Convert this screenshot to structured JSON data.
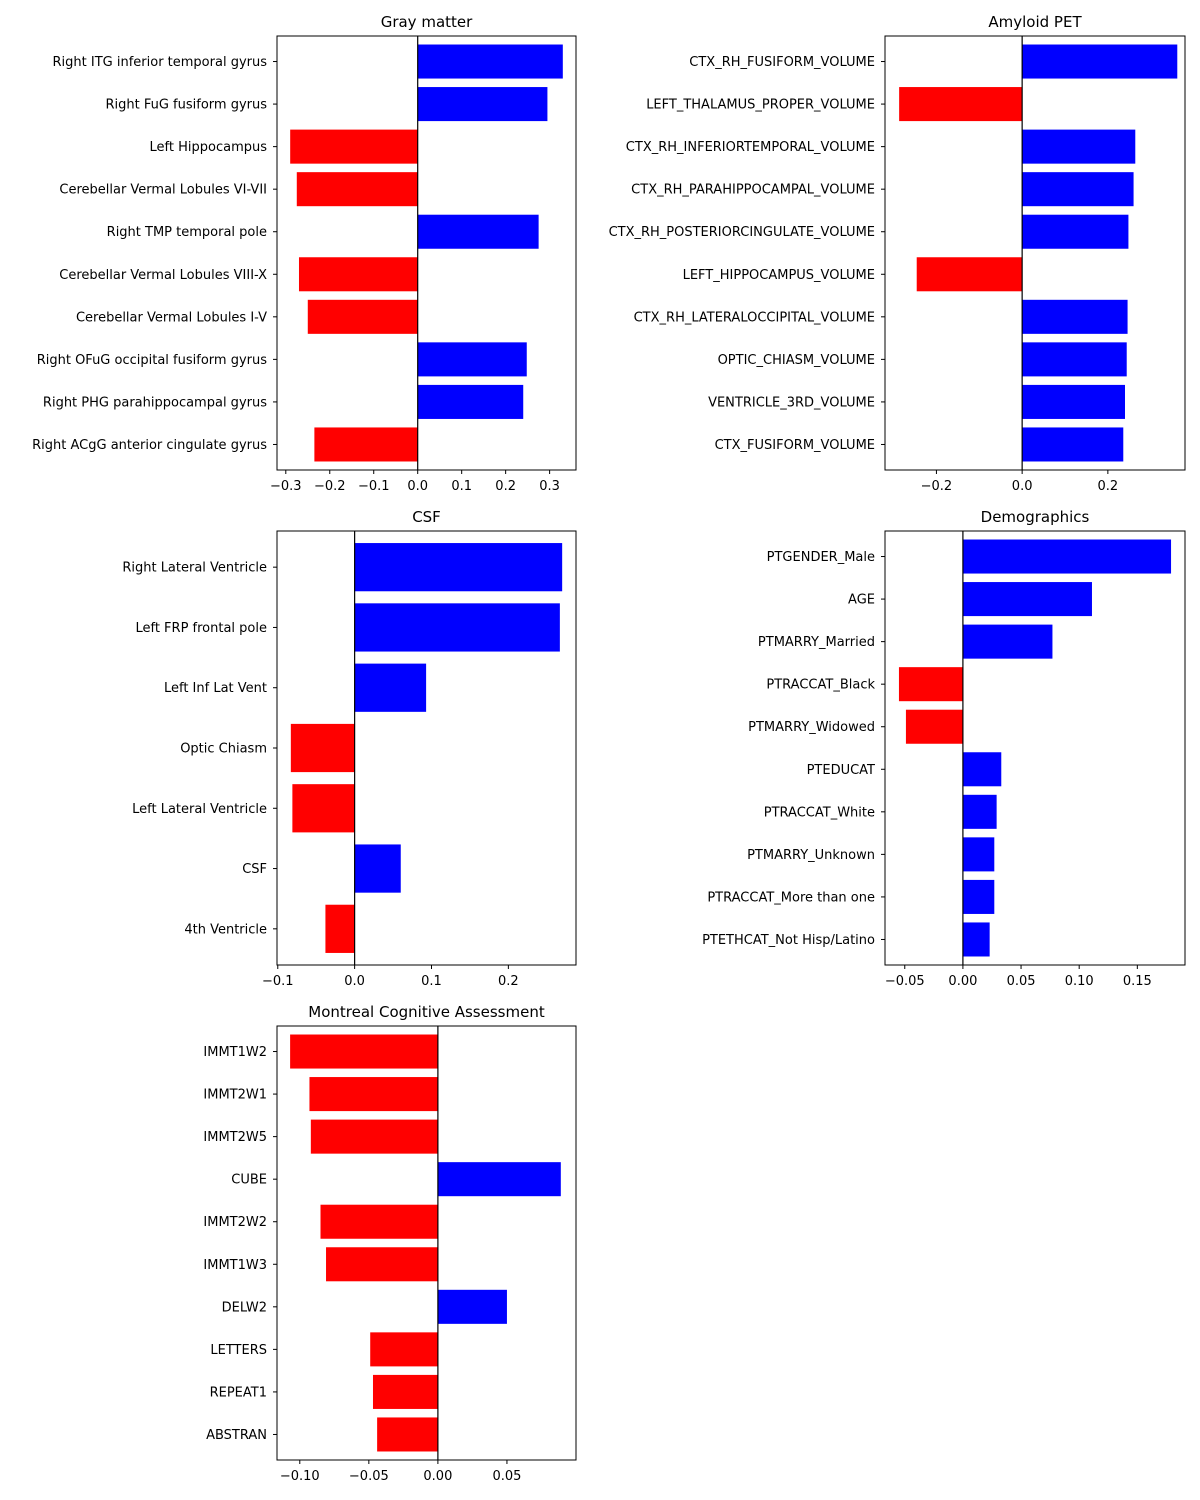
{
  "chart_data": [
    {
      "type": "bar",
      "orientation": "horizontal",
      "title": "Gray matter",
      "xlabel": "",
      "ylabel": "",
      "xlim": [
        -0.32,
        0.36
      ],
      "xticks": [
        -0.3,
        -0.2,
        -0.1,
        0.0,
        0.1,
        0.2,
        0.3
      ],
      "xtick_labels": [
        "−0.3",
        "−0.2",
        "−0.1",
        "0.0",
        "0.1",
        "0.2",
        "0.3"
      ],
      "categories": [
        "Right ITG inferior temporal gyrus",
        "Right FuG fusiform gyrus",
        "Left Hippocampus",
        "Cerebellar Vermal Lobules VI-VII",
        "Right TMP temporal pole",
        "Cerebellar Vermal Lobules VIII-X",
        "Cerebellar Vermal Lobules I-V",
        "Right OFuG occipital fusiform gyrus",
        "Right PHG parahippocampal gyrus",
        "Right ACgG anterior cingulate gyrus"
      ],
      "values": [
        0.33,
        0.295,
        -0.29,
        -0.275,
        0.275,
        -0.27,
        -0.25,
        0.248,
        0.24,
        -0.235
      ],
      "positive_color": "#0000ff",
      "negative_color": "#ff0000"
    },
    {
      "type": "bar",
      "orientation": "horizontal",
      "title": "Amyloid PET",
      "xlabel": "",
      "ylabel": "",
      "xlim": [
        -0.32,
        0.38
      ],
      "xticks": [
        -0.2,
        0.0,
        0.2
      ],
      "xtick_labels": [
        "−0.2",
        "0.0",
        "0.2"
      ],
      "categories": [
        "CTX_RH_FUSIFORM_VOLUME",
        "LEFT_THALAMUS_PROPER_VOLUME",
        "CTX_RH_INFERIORTEMPORAL_VOLUME",
        "CTX_RH_PARAHIPPOCAMPAL_VOLUME",
        "CTX_RH_POSTERIORCINGULATE_VOLUME",
        "LEFT_HIPPOCAMPUS_VOLUME",
        "CTX_RH_LATERALOCCIPITAL_VOLUME",
        "OPTIC_CHIASM_VOLUME",
        "VENTRICLE_3RD_VOLUME",
        "CTX_FUSIFORM_VOLUME"
      ],
      "values": [
        0.362,
        -0.287,
        0.264,
        0.26,
        0.248,
        -0.246,
        0.246,
        0.244,
        0.24,
        0.236
      ],
      "positive_color": "#0000ff",
      "negative_color": "#ff0000"
    },
    {
      "type": "bar",
      "orientation": "horizontal",
      "title": "CSF",
      "xlabel": "",
      "ylabel": "",
      "xlim": [
        -0.101,
        0.288
      ],
      "xticks": [
        -0.1,
        0.0,
        0.1,
        0.2
      ],
      "xtick_labels": [
        "−0.1",
        "0.0",
        "0.1",
        "0.2"
      ],
      "categories": [
        "Right Lateral Ventricle",
        "Left FRP frontal pole",
        "Left Inf Lat Vent",
        "Optic Chiasm",
        "Left Lateral Ventricle",
        "CSF",
        "4th Ventricle"
      ],
      "values": [
        0.27,
        0.267,
        0.093,
        -0.083,
        -0.081,
        0.06,
        -0.038
      ],
      "positive_color": "#0000ff",
      "negative_color": "#ff0000"
    },
    {
      "type": "bar",
      "orientation": "horizontal",
      "title": "Demographics",
      "xlabel": "",
      "ylabel": "",
      "xlim": [
        -0.067,
        0.191
      ],
      "xticks": [
        -0.05,
        0.0,
        0.05,
        0.1,
        0.15
      ],
      "xtick_labels": [
        "−0.05",
        "0.00",
        "0.05",
        "0.10",
        "0.15"
      ],
      "categories": [
        "PTGENDER_Male",
        "AGE",
        "PTMARRY_Married",
        "PTRACCAT_Black",
        "PTMARRY_Widowed",
        "PTEDUCAT",
        "PTRACCAT_White",
        "PTMARRY_Unknown",
        "PTRACCAT_More than one",
        "PTETHCAT_Not Hisp/Latino"
      ],
      "values": [
        0.179,
        0.111,
        0.077,
        -0.055,
        -0.049,
        0.033,
        0.029,
        0.027,
        0.027,
        0.023
      ],
      "positive_color": "#0000ff",
      "negative_color": "#ff0000"
    },
    {
      "type": "bar",
      "orientation": "horizontal",
      "title": "Montreal Cognitive Assessment",
      "xlabel": "",
      "ylabel": "",
      "xlim": [
        -0.1165,
        0.1
      ],
      "xticks": [
        -0.1,
        -0.05,
        0.0,
        0.05
      ],
      "xtick_labels": [
        "−0.10",
        "−0.05",
        "0.00",
        "0.05"
      ],
      "categories": [
        "IMMT1W2",
        "IMMT2W1",
        "IMMT2W5",
        "CUBE",
        "IMMT2W2",
        "IMMT1W3",
        "DELW2",
        "LETTERS",
        "REPEAT1",
        "ABSTRAN"
      ],
      "values": [
        -0.107,
        -0.093,
        -0.092,
        0.089,
        -0.085,
        -0.081,
        0.05,
        -0.049,
        -0.047,
        -0.044
      ],
      "positive_color": "#0000ff",
      "negative_color": "#ff0000"
    }
  ]
}
